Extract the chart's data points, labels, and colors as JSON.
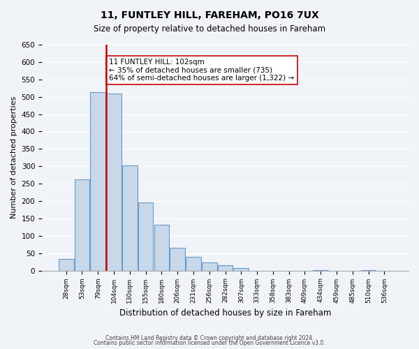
{
  "title": "11, FUNTLEY HILL, FAREHAM, PO16 7UX",
  "subtitle": "Size of property relative to detached houses in Fareham",
  "xlabel": "Distribution of detached houses by size in Fareham",
  "ylabel": "Number of detached properties",
  "bin_labels": [
    "28sqm",
    "53sqm",
    "79sqm",
    "104sqm",
    "130sqm",
    "155sqm",
    "180sqm",
    "206sqm",
    "231sqm",
    "256sqm",
    "282sqm",
    "307sqm",
    "333sqm",
    "358sqm",
    "383sqm",
    "409sqm",
    "434sqm",
    "459sqm",
    "485sqm",
    "510sqm",
    "536sqm"
  ],
  "bar_heights": [
    33,
    263,
    513,
    510,
    302,
    197,
    131,
    65,
    40,
    24,
    16,
    8,
    0,
    0,
    0,
    0,
    1,
    0,
    0,
    1,
    0
  ],
  "bar_color": "#c8d8e8",
  "bar_edge_color": "#6699cc",
  "vline_x": 3,
  "vline_color": "#cc0000",
  "annotation_text": "11 FUNTLEY HILL: 102sqm\n← 35% of detached houses are smaller (735)\n64% of semi-detached houses are larger (1,322) →",
  "annotation_box_color": "#ffffff",
  "annotation_box_edge": "#cc0000",
  "ylim": [
    0,
    650
  ],
  "yticks": [
    0,
    50,
    100,
    150,
    200,
    250,
    300,
    350,
    400,
    450,
    500,
    550,
    600,
    650
  ],
  "footnote1": "Contains HM Land Registry data © Crown copyright and database right 2024.",
  "footnote2": "Contains public sector information licensed under the Open Government Licence v3.0.",
  "background_color": "#f0f4f8"
}
